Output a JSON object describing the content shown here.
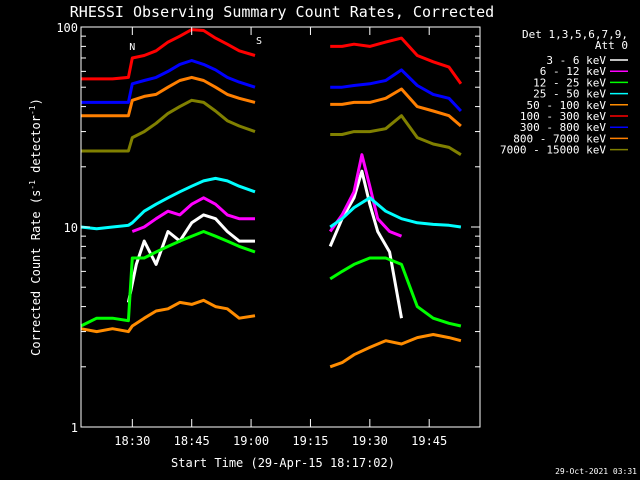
{
  "chart_data": {
    "type": "line",
    "title": "RHESSI Observing Summary Count Rates, Corrected",
    "xlabel": "Start Time (29-Apr-15 18:17:02)",
    "ylabel": "Corrected Count Rate (s",
    "ylabel_sup1": "-1",
    "ylabel_mid": " detector",
    "ylabel_sup2": "-1",
    "ylabel_end": ")",
    "footer": "29-Oct-2021 03:31",
    "y_scale": "log",
    "ylim": [
      1,
      100
    ],
    "xlim": [
      "18:17:02",
      "19:57:50"
    ],
    "x_ticks": [
      "18:30",
      "18:45",
      "19:00",
      "19:15",
      "19:30",
      "19:45"
    ],
    "y_ticks": [
      "1",
      "10",
      "100"
    ],
    "legend_header": [
      "Det 1,3,5,6,7,9,",
      "Att 0"
    ],
    "legend_position": "top-right",
    "flag_letters": [
      "N",
      "S"
    ],
    "series": [
      {
        "name": "3 - 6 keV",
        "color": "#ffffff",
        "points": [
          [
            "18:29",
            4.2
          ],
          [
            "18:31",
            6.5
          ],
          [
            "18:33",
            8.5
          ],
          [
            "18:36",
            6.5
          ],
          [
            "18:39",
            9.5
          ],
          [
            "18:42",
            8.5
          ],
          [
            "18:45",
            10.5
          ],
          [
            "18:48",
            11.5
          ],
          [
            "18:51",
            11
          ],
          [
            "18:54",
            9.5
          ],
          [
            "18:57",
            8.5
          ],
          [
            "19:01",
            8.5
          ],
          [
            "19:20",
            8
          ],
          [
            "19:23",
            11
          ],
          [
            "19:26",
            14
          ],
          [
            "19:28",
            19
          ],
          [
            "19:30",
            13
          ],
          [
            "19:32",
            9.5
          ],
          [
            "19:35",
            7.5
          ],
          [
            "19:38",
            3.5
          ]
        ]
      },
      {
        "name": "6 - 12 keV",
        "color": "#ff00ff",
        "points": [
          [
            "18:30",
            9.5
          ],
          [
            "18:33",
            10
          ],
          [
            "18:36",
            11
          ],
          [
            "18:39",
            12
          ],
          [
            "18:42",
            11.5
          ],
          [
            "18:45",
            13
          ],
          [
            "18:48",
            14
          ],
          [
            "18:51",
            13
          ],
          [
            "18:54",
            11.5
          ],
          [
            "18:57",
            11
          ],
          [
            "19:01",
            11
          ],
          [
            "19:20",
            9.5
          ],
          [
            "19:23",
            11.5
          ],
          [
            "19:26",
            15
          ],
          [
            "19:28",
            23
          ],
          [
            "19:30",
            16
          ],
          [
            "19:32",
            11
          ],
          [
            "19:35",
            9.5
          ],
          [
            "19:38",
            9
          ]
        ]
      },
      {
        "name": "12 - 25 keV",
        "color": "#00ff00",
        "points": [
          [
            "18:17",
            3.2
          ],
          [
            "18:21",
            3.5
          ],
          [
            "18:25",
            3.5
          ],
          [
            "18:29",
            3.4
          ],
          [
            "18:30",
            7
          ],
          [
            "18:33",
            7
          ],
          [
            "18:36",
            7.5
          ],
          [
            "18:39",
            8
          ],
          [
            "18:42",
            8.5
          ],
          [
            "18:45",
            9
          ],
          [
            "18:48",
            9.5
          ],
          [
            "18:51",
            9
          ],
          [
            "18:54",
            8.5
          ],
          [
            "18:57",
            8
          ],
          [
            "19:01",
            7.5
          ],
          [
            "19:20",
            5.5
          ],
          [
            "19:23",
            6
          ],
          [
            "19:26",
            6.5
          ],
          [
            "19:30",
            7
          ],
          [
            "19:34",
            7
          ],
          [
            "19:38",
            6.5
          ],
          [
            "19:42",
            4
          ],
          [
            "19:46",
            3.5
          ],
          [
            "19:50",
            3.3
          ],
          [
            "19:53",
            3.2
          ]
        ]
      },
      {
        "name": "25 - 50 keV",
        "color": "#00ffff",
        "points": [
          [
            "18:17",
            10
          ],
          [
            "18:21",
            9.8
          ],
          [
            "18:25",
            10
          ],
          [
            "18:29",
            10.2
          ],
          [
            "18:30",
            10.5
          ],
          [
            "18:33",
            12
          ],
          [
            "18:36",
            13
          ],
          [
            "18:39",
            14
          ],
          [
            "18:42",
            15
          ],
          [
            "18:45",
            16
          ],
          [
            "18:48",
            17
          ],
          [
            "18:51",
            17.5
          ],
          [
            "18:54",
            17
          ],
          [
            "18:57",
            16
          ],
          [
            "19:01",
            15
          ],
          [
            "19:20",
            10
          ],
          [
            "19:23",
            11
          ],
          [
            "19:26",
            12.5
          ],
          [
            "19:30",
            14
          ],
          [
            "19:34",
            12
          ],
          [
            "19:38",
            11
          ],
          [
            "19:42",
            10.5
          ],
          [
            "19:46",
            10.3
          ],
          [
            "19:50",
            10.2
          ],
          [
            "19:53",
            10
          ]
        ]
      },
      {
        "name": "50 - 100 keV",
        "color": "#ff8c00",
        "points": [
          [
            "18:17",
            3.1
          ],
          [
            "18:21",
            3
          ],
          [
            "18:25",
            3.1
          ],
          [
            "18:29",
            3
          ],
          [
            "18:30",
            3.2
          ],
          [
            "18:33",
            3.5
          ],
          [
            "18:36",
            3.8
          ],
          [
            "18:39",
            3.9
          ],
          [
            "18:42",
            4.2
          ],
          [
            "18:45",
            4.1
          ],
          [
            "18:48",
            4.3
          ],
          [
            "18:51",
            4
          ],
          [
            "18:54",
            3.9
          ],
          [
            "18:57",
            3.5
          ],
          [
            "19:01",
            3.6
          ],
          [
            "19:20",
            2
          ],
          [
            "19:23",
            2.1
          ],
          [
            "19:26",
            2.3
          ],
          [
            "19:30",
            2.5
          ],
          [
            "19:34",
            2.7
          ],
          [
            "19:38",
            2.6
          ],
          [
            "19:42",
            2.8
          ],
          [
            "19:46",
            2.9
          ],
          [
            "19:50",
            2.8
          ],
          [
            "19:53",
            2.7
          ]
        ]
      },
      {
        "name": "100 - 300 keV",
        "color": "#ff0000",
        "points": [
          [
            "18:17",
            55
          ],
          [
            "18:21",
            55
          ],
          [
            "18:25",
            55
          ],
          [
            "18:29",
            56
          ],
          [
            "18:30",
            70
          ],
          [
            "18:33",
            72
          ],
          [
            "18:36",
            76
          ],
          [
            "18:39",
            84
          ],
          [
            "18:42",
            90
          ],
          [
            "18:45",
            97
          ],
          [
            "18:48",
            96
          ],
          [
            "18:51",
            88
          ],
          [
            "18:54",
            82
          ],
          [
            "18:57",
            76
          ],
          [
            "19:01",
            72
          ],
          [
            "19:20",
            80
          ],
          [
            "19:23",
            80
          ],
          [
            "19:26",
            82
          ],
          [
            "19:30",
            80
          ],
          [
            "19:34",
            84
          ],
          [
            "19:38",
            88
          ],
          [
            "19:42",
            72
          ],
          [
            "19:46",
            67
          ],
          [
            "19:50",
            63
          ],
          [
            "19:53",
            52
          ]
        ]
      },
      {
        "name": "300 - 800 keV",
        "color": "#0000ff",
        "points": [
          [
            "18:17",
            42
          ],
          [
            "18:21",
            42
          ],
          [
            "18:25",
            42
          ],
          [
            "18:29",
            42
          ],
          [
            "18:30",
            52
          ],
          [
            "18:33",
            54
          ],
          [
            "18:36",
            56
          ],
          [
            "18:39",
            60
          ],
          [
            "18:42",
            65
          ],
          [
            "18:45",
            68
          ],
          [
            "18:48",
            65
          ],
          [
            "18:51",
            61
          ],
          [
            "18:54",
            56
          ],
          [
            "18:57",
            53
          ],
          [
            "19:01",
            50
          ],
          [
            "19:20",
            50
          ],
          [
            "19:23",
            50
          ],
          [
            "19:26",
            51
          ],
          [
            "19:30",
            52
          ],
          [
            "19:34",
            54
          ],
          [
            "19:38",
            61
          ],
          [
            "19:42",
            51
          ],
          [
            "19:46",
            46
          ],
          [
            "19:50",
            44
          ],
          [
            "19:53",
            38
          ]
        ]
      },
      {
        "name": "800 - 7000 keV",
        "color": "#ff7f00",
        "points": [
          [
            "18:17",
            36
          ],
          [
            "18:21",
            36
          ],
          [
            "18:25",
            36
          ],
          [
            "18:29",
            36
          ],
          [
            "18:30",
            43
          ],
          [
            "18:33",
            45
          ],
          [
            "18:36",
            46
          ],
          [
            "18:39",
            50
          ],
          [
            "18:42",
            54
          ],
          [
            "18:45",
            56
          ],
          [
            "18:48",
            54
          ],
          [
            "18:51",
            50
          ],
          [
            "18:54",
            46
          ],
          [
            "18:57",
            44
          ],
          [
            "19:01",
            42
          ],
          [
            "19:20",
            41
          ],
          [
            "19:23",
            41
          ],
          [
            "19:26",
            42
          ],
          [
            "19:30",
            42
          ],
          [
            "19:34",
            44
          ],
          [
            "19:38",
            49
          ],
          [
            "19:42",
            40
          ],
          [
            "19:46",
            38
          ],
          [
            "19:50",
            36
          ],
          [
            "19:53",
            32
          ]
        ]
      },
      {
        "name": "7000 - 15000 keV",
        "color": "#808000",
        "points": [
          [
            "18:17",
            24
          ],
          [
            "18:21",
            24
          ],
          [
            "18:25",
            24
          ],
          [
            "18:29",
            24
          ],
          [
            "18:30",
            28
          ],
          [
            "18:33",
            30
          ],
          [
            "18:36",
            33
          ],
          [
            "18:39",
            37
          ],
          [
            "18:42",
            40
          ],
          [
            "18:45",
            43
          ],
          [
            "18:48",
            42
          ],
          [
            "18:51",
            38
          ],
          [
            "18:54",
            34
          ],
          [
            "18:57",
            32
          ],
          [
            "19:01",
            30
          ],
          [
            "19:20",
            29
          ],
          [
            "19:23",
            29
          ],
          [
            "19:26",
            30
          ],
          [
            "19:30",
            30
          ],
          [
            "19:34",
            31
          ],
          [
            "19:38",
            36
          ],
          [
            "19:42",
            28
          ],
          [
            "19:46",
            26
          ],
          [
            "19:50",
            25
          ],
          [
            "19:53",
            23
          ]
        ]
      }
    ]
  }
}
